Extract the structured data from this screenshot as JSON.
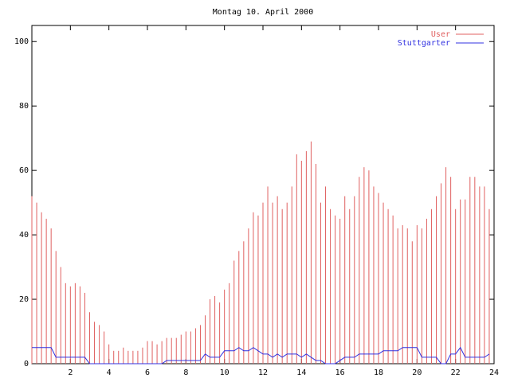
{
  "chart_data": {
    "type": "impulses",
    "title": "Montag 10. April 2000",
    "x": [
      0,
      0.25,
      0.5,
      0.75,
      1,
      1.25,
      1.5,
      1.75,
      2,
      2.25,
      2.5,
      2.75,
      3,
      3.25,
      3.5,
      3.75,
      4,
      4.25,
      4.5,
      4.75,
      5,
      5.25,
      5.5,
      5.75,
      6,
      6.25,
      6.5,
      6.75,
      7,
      7.25,
      7.5,
      7.75,
      8,
      8.25,
      8.5,
      8.75,
      9,
      9.25,
      9.5,
      9.75,
      10,
      10.25,
      10.5,
      10.75,
      11,
      11.25,
      11.5,
      11.75,
      12,
      12.25,
      12.5,
      12.75,
      13,
      13.25,
      13.5,
      13.75,
      14,
      14.25,
      14.5,
      14.75,
      15,
      15.25,
      15.5,
      15.75,
      16,
      16.25,
      16.5,
      16.75,
      17,
      17.25,
      17.5,
      17.75,
      18,
      18.25,
      18.5,
      18.75,
      19,
      19.25,
      19.5,
      19.75,
      20,
      20.25,
      20.5,
      20.75,
      21,
      21.25,
      21.5,
      21.75,
      22,
      22.25,
      22.5,
      22.75,
      23,
      23.25,
      23.5,
      23.75
    ],
    "series": [
      {
        "name": "User",
        "color": "#e06060",
        "style": "impulses",
        "values": [
          52,
          50,
          47,
          45,
          42,
          35,
          30,
          25,
          24,
          25,
          24,
          22,
          16,
          13,
          12,
          10,
          6,
          4,
          4,
          5,
          4,
          4,
          4,
          5,
          7,
          7,
          6,
          7,
          8,
          8,
          8,
          9,
          10,
          10,
          11,
          12,
          15,
          20,
          21,
          19,
          23,
          25,
          32,
          35,
          38,
          42,
          47,
          46,
          50,
          55,
          50,
          52,
          48,
          50,
          55,
          65,
          63,
          66,
          69,
          62,
          50,
          55,
          48,
          46,
          45,
          52,
          48,
          52,
          58,
          61,
          60,
          55,
          53,
          50,
          48,
          46,
          42,
          43,
          42,
          38,
          43,
          42,
          45,
          48,
          52,
          56,
          61,
          58,
          48,
          51,
          51,
          58,
          58,
          55,
          55,
          48
        ]
      },
      {
        "name": "Stuttgarter",
        "color": "#3030e0",
        "style": "line",
        "values": [
          5,
          5,
          5,
          5,
          5,
          2,
          2,
          2,
          2,
          2,
          2,
          2,
          0,
          0,
          0,
          0,
          0,
          0,
          0,
          0,
          0,
          0,
          0,
          0,
          0,
          0,
          0,
          0,
          1,
          1,
          1,
          1,
          1,
          1,
          1,
          1,
          3,
          2,
          2,
          2,
          4,
          4,
          4,
          5,
          4,
          4,
          5,
          4,
          3,
          3,
          2,
          3,
          2,
          3,
          3,
          3,
          2,
          3,
          2,
          1,
          1,
          0,
          0,
          0,
          1,
          2,
          2,
          2,
          3,
          3,
          3,
          3,
          3,
          4,
          4,
          4,
          4,
          5,
          5,
          5,
          5,
          2,
          2,
          2,
          2,
          0,
          0,
          3,
          3,
          5,
          2,
          2,
          2,
          2,
          2,
          3
        ]
      }
    ],
    "xlim": [
      0,
      24
    ],
    "xticks": [
      2,
      4,
      6,
      8,
      10,
      12,
      14,
      16,
      18,
      20,
      22,
      24
    ],
    "ylim": [
      0,
      105
    ],
    "yticks": [
      0,
      20,
      40,
      60,
      80,
      100
    ],
    "legend": "top-right"
  }
}
